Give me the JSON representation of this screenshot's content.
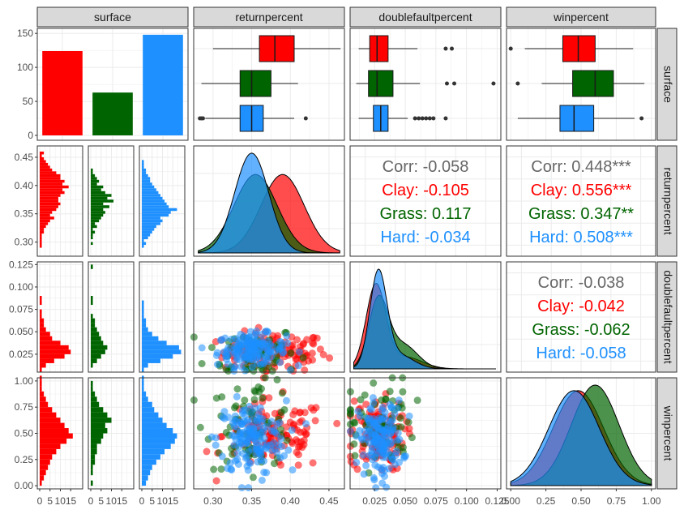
{
  "variables": [
    "surface",
    "returnpercent",
    "doublefaultpercent",
    "winpercent"
  ],
  "colors": {
    "Clay": "#ff0000",
    "Grass": "#006400",
    "Hard": "#1e90ff",
    "corr": "#666666",
    "grid": "#ebebeb",
    "strip": "#d9d9d9"
  },
  "chart_data": {
    "type": "scatterplot-matrix",
    "groups": [
      "Clay",
      "Grass",
      "Hard"
    ],
    "surface_counts": {
      "categories": [
        "Clay",
        "Grass",
        "Hard"
      ],
      "values": [
        124,
        63,
        148
      ],
      "ylim": [
        0,
        155
      ],
      "ticks": [
        "0",
        "50",
        "100",
        "150"
      ]
    },
    "axes": {
      "returnpercent": {
        "lim": [
          0.275,
          0.47
        ],
        "x_ticks": [
          0.3,
          0.35,
          0.4,
          0.45
        ],
        "x_tick_labels": [
          "0.30",
          "0.35",
          "0.40",
          "0.45"
        ],
        "y_ticks": [
          0.3,
          0.35,
          0.4,
          0.45
        ],
        "y_tick_labels": [
          "0.30",
          "0.35",
          "0.40",
          "0.45"
        ]
      },
      "doublefaultpercent": {
        "lim": [
          0.005,
          0.128
        ],
        "x_ticks": [
          0.025,
          0.05,
          0.075,
          0.1,
          0.125
        ],
        "x_tick_labels": [
          "0.025",
          "0.050",
          "0.075",
          "0.100",
          "0.125"
        ],
        "y_ticks": [
          0.025,
          0.05,
          0.075,
          0.1,
          0.125
        ],
        "y_tick_labels": [
          "0.025",
          "0.050",
          "0.075",
          "0.100",
          "0.125"
        ]
      },
      "winpercent": {
        "lim": [
          -0.03,
          1.03
        ],
        "x_ticks": [
          0,
          0.25,
          0.5,
          0.75,
          1.0
        ],
        "x_tick_labels": [
          "0.00",
          "0.25",
          "0.50",
          "0.75",
          "1.00"
        ],
        "y_ticks": [
          0,
          0.25,
          0.5,
          0.75,
          1.0
        ],
        "y_tick_labels": [
          "0.00",
          "0.25",
          "0.50",
          "0.75",
          "1.00"
        ]
      },
      "count": {
        "lim": [
          0,
          20
        ],
        "x_ticks": [
          0,
          5,
          10,
          15
        ],
        "x_tick_labels": [
          "0",
          "5",
          "10",
          "15"
        ]
      }
    },
    "boxplots": {
      "returnpercent": {
        "Clay": {
          "whisker_low": 0.3,
          "q1": 0.36,
          "median": 0.38,
          "q3": 0.405,
          "whisker_high": 0.465,
          "outliers": []
        },
        "Grass": {
          "whisker_low": 0.285,
          "q1": 0.335,
          "median": 0.35,
          "q3": 0.375,
          "whisker_high": 0.41,
          "outliers": []
        },
        "Hard": {
          "whisker_low": 0.29,
          "q1": 0.335,
          "median": 0.35,
          "q3": 0.365,
          "whisker_high": 0.405,
          "outliers": [
            0.283,
            0.285,
            0.287,
            0.42
          ]
        }
      },
      "doublefaultpercent": {
        "Clay": {
          "whisker_low": 0.012,
          "q1": 0.021,
          "median": 0.027,
          "q3": 0.036,
          "whisker_high": 0.06,
          "outliers": [
            0.083,
            0.088
          ]
        },
        "Grass": {
          "whisker_low": 0.01,
          "q1": 0.02,
          "median": 0.027,
          "q3": 0.04,
          "whisker_high": 0.062,
          "outliers": [
            0.084,
            0.09,
            0.122
          ]
        },
        "Hard": {
          "whisker_low": 0.012,
          "q1": 0.024,
          "median": 0.03,
          "q3": 0.036,
          "whisker_high": 0.052,
          "outliers": [
            0.058,
            0.061,
            0.064,
            0.067,
            0.07,
            0.073,
            0.083
          ]
        }
      },
      "winpercent": {
        "Clay": {
          "whisker_low": 0.1,
          "q1": 0.37,
          "median": 0.48,
          "q3": 0.6,
          "whisker_high": 0.87,
          "outliers": [
            0.0
          ]
        },
        "Grass": {
          "whisker_low": 0.22,
          "q1": 0.44,
          "median": 0.6,
          "q3": 0.73,
          "whisker_high": 0.95,
          "outliers": [
            0.05
          ]
        },
        "Hard": {
          "whisker_low": 0.05,
          "q1": 0.35,
          "median": 0.45,
          "q3": 0.59,
          "whisker_high": 0.88,
          "outliers": [
            0.93
          ]
        }
      }
    },
    "histograms": {
      "returnpercent": {
        "bins": [
          0.29,
          0.295,
          0.3,
          0.305,
          0.31,
          0.315,
          0.32,
          0.325,
          0.33,
          0.335,
          0.34,
          0.345,
          0.35,
          0.355,
          0.36,
          0.365,
          0.37,
          0.375,
          0.38,
          0.385,
          0.39,
          0.395,
          0.4,
          0.405,
          0.41,
          0.415,
          0.42,
          0.425,
          0.43,
          0.435,
          0.44,
          0.445,
          0.45,
          0.455
        ],
        "Clay": [
          1,
          1,
          1,
          1,
          1,
          2,
          2,
          3,
          4,
          5,
          7,
          5,
          6,
          8,
          9,
          10,
          9,
          9,
          10,
          12,
          11,
          14,
          11,
          12,
          10,
          10,
          8,
          6,
          5,
          4,
          3,
          2,
          1,
          2
        ],
        "Grass": [
          0,
          1,
          0,
          1,
          1,
          2,
          1,
          3,
          2,
          4,
          5,
          6,
          7,
          6,
          9,
          6,
          11,
          8,
          10,
          7,
          5,
          6,
          3,
          4,
          3,
          2,
          1,
          1,
          0,
          0,
          0,
          0,
          0,
          0
        ],
        "Hard": [
          1,
          2,
          1,
          3,
          4,
          5,
          6,
          7,
          9,
          10,
          9,
          13,
          14,
          17,
          13,
          12,
          11,
          10,
          9,
          8,
          7,
          6,
          5,
          4,
          4,
          3,
          2,
          2,
          1,
          1,
          1,
          0,
          0,
          0
        ]
      },
      "doublefaultpercent": {
        "bins": [
          0.005,
          0.01,
          0.015,
          0.02,
          0.025,
          0.03,
          0.035,
          0.04,
          0.045,
          0.05,
          0.055,
          0.06,
          0.065,
          0.07,
          0.075,
          0.08,
          0.085,
          0.09,
          0.095,
          0.1,
          0.105,
          0.11,
          0.115,
          0.12
        ],
        "Clay": [
          1,
          3,
          7,
          12,
          15,
          14,
          10,
          6,
          5,
          3,
          2,
          2,
          1,
          1,
          0,
          1,
          1,
          0,
          0,
          0,
          0,
          0,
          0,
          0
        ],
        "Grass": [
          0,
          1,
          3,
          5,
          7,
          8,
          6,
          5,
          4,
          3,
          2,
          2,
          1,
          0,
          0,
          1,
          1,
          0,
          0,
          0,
          0,
          0,
          0,
          1
        ],
        "Hard": [
          1,
          3,
          9,
          15,
          19,
          18,
          12,
          8,
          5,
          3,
          2,
          2,
          1,
          1,
          1,
          1,
          0,
          0,
          0,
          0,
          0,
          0,
          0,
          0
        ]
      },
      "winpercent": {
        "bins": [
          0.0,
          0.05,
          0.1,
          0.15,
          0.2,
          0.25,
          0.3,
          0.35,
          0.4,
          0.45,
          0.5,
          0.55,
          0.6,
          0.65,
          0.7,
          0.75,
          0.8,
          0.85,
          0.9,
          0.95,
          1.0
        ],
        "Clay": [
          1,
          2,
          3,
          4,
          5,
          6,
          8,
          10,
          13,
          16,
          14,
          12,
          10,
          8,
          6,
          4,
          3,
          2,
          1,
          1,
          1
        ],
        "Grass": [
          1,
          0,
          1,
          1,
          2,
          2,
          3,
          3,
          5,
          6,
          8,
          7,
          10,
          8,
          6,
          4,
          3,
          2,
          1,
          1,
          0
        ],
        "Hard": [
          2,
          3,
          4,
          5,
          7,
          9,
          11,
          14,
          16,
          17,
          15,
          12,
          10,
          8,
          6,
          5,
          3,
          2,
          1,
          1,
          1
        ]
      }
    },
    "densities": {
      "returnpercent": {
        "Clay": {
          "mean": 0.39,
          "sd": 0.028
        },
        "Grass": {
          "mean": 0.355,
          "sd": 0.028
        },
        "Hard": {
          "mean": 0.35,
          "sd": 0.022
        }
      },
      "doublefaultpercent": {
        "Clay": {
          "components": [
            [
              0.026,
              0.008,
              0.8
            ],
            [
              0.05,
              0.014,
              0.2
            ]
          ]
        },
        "Grass": {
          "components": [
            [
              0.028,
              0.008,
              0.65
            ],
            [
              0.048,
              0.012,
              0.35
            ]
          ]
        },
        "Hard": {
          "components": [
            [
              0.028,
              0.007,
              0.8
            ],
            [
              0.045,
              0.012,
              0.2
            ]
          ]
        }
      },
      "winpercent": {
        "Clay": {
          "mean": 0.48,
          "sd": 0.18
        },
        "Grass": {
          "mean": 0.6,
          "sd": 0.17
        },
        "Hard": {
          "mean": 0.45,
          "sd": 0.18
        }
      }
    },
    "scatter_counts": {
      "Clay": 124,
      "Grass": 63,
      "Hard": 148
    },
    "correlations": [
      {
        "row": "returnpercent",
        "col": "doublefaultpercent",
        "lines": [
          "Corr: -0.058",
          "Clay: -0.105",
          "Grass: 0.117",
          "Hard: -0.034"
        ]
      },
      {
        "row": "returnpercent",
        "col": "winpercent",
        "lines": [
          "Corr: 0.448***",
          "Clay: 0.556***",
          "Grass: 0.347**",
          "Hard: 0.508***"
        ]
      },
      {
        "row": "doublefaultpercent",
        "col": "winpercent",
        "lines": [
          "Corr: -0.038",
          "Clay: -0.042",
          "Grass: -0.062",
          "Hard: -0.058"
        ]
      }
    ]
  }
}
